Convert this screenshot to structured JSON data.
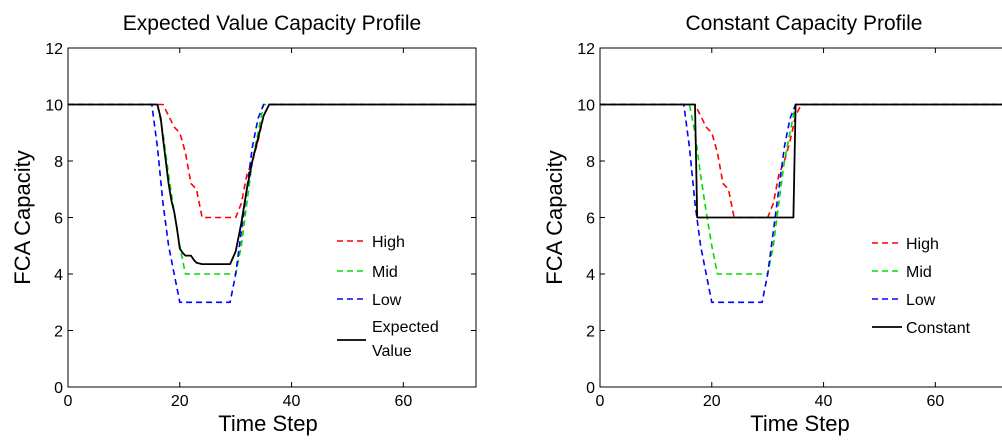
{
  "chart_data": [
    {
      "type": "line",
      "title": "Expected Value Capacity Profile",
      "xlabel": "Time Step",
      "ylabel": "FCA Capacity",
      "xlim": [
        0,
        73
      ],
      "ylim": [
        0,
        12
      ],
      "xticks": [
        0,
        20,
        40,
        60
      ],
      "yticks": [
        0,
        2,
        4,
        6,
        8,
        10,
        12
      ],
      "grid": false,
      "legend_position": "right",
      "series": [
        {
          "name": "High",
          "color": "#ff0000",
          "dash": "dashed",
          "points": [
            [
              0,
              10
            ],
            [
              17,
              10
            ],
            [
              18,
              9.6
            ],
            [
              19,
              9.2
            ],
            [
              20,
              9
            ],
            [
              21,
              8.3
            ],
            [
              22,
              7.2
            ],
            [
              23,
              7
            ],
            [
              24,
              6
            ],
            [
              30,
              6
            ],
            [
              31,
              6.5
            ],
            [
              32,
              7.5
            ],
            [
              33,
              8
            ],
            [
              34,
              8.7
            ],
            [
              35,
              9.6
            ],
            [
              36,
              10
            ],
            [
              73,
              10
            ]
          ]
        },
        {
          "name": "Mid",
          "color": "#00dd00",
          "dash": "dashed",
          "points": [
            [
              0,
              10
            ],
            [
              16,
              10
            ],
            [
              17,
              9
            ],
            [
              18,
              7.5
            ],
            [
              19,
              6.2
            ],
            [
              20,
              5
            ],
            [
              21,
              4
            ],
            [
              30,
              4
            ],
            [
              31,
              5
            ],
            [
              32,
              6.5
            ],
            [
              33,
              8
            ],
            [
              34,
              9
            ],
            [
              35,
              10
            ],
            [
              73,
              10
            ]
          ]
        },
        {
          "name": "Low",
          "color": "#0000ff",
          "dash": "dashed",
          "points": [
            [
              0,
              10
            ],
            [
              15,
              10
            ],
            [
              16,
              8.5
            ],
            [
              17,
              6.5
            ],
            [
              18,
              5
            ],
            [
              19,
              4
            ],
            [
              20,
              3
            ],
            [
              29,
              3
            ],
            [
              30,
              4
            ],
            [
              31,
              5.5
            ],
            [
              32,
              7
            ],
            [
              33,
              8.5
            ],
            [
              34,
              9.5
            ],
            [
              35,
              10
            ],
            [
              73,
              10
            ]
          ]
        },
        {
          "name": "Expected Value",
          "color": "#000000",
          "dash": "solid",
          "points": [
            [
              0,
              10
            ],
            [
              16,
              10
            ],
            [
              16.6,
              9.5
            ],
            [
              17,
              8.8
            ],
            [
              17.5,
              8
            ],
            [
              18,
              7.2
            ],
            [
              18.5,
              6.6
            ],
            [
              19,
              6.2
            ],
            [
              19.5,
              5.6
            ],
            [
              20,
              4.9
            ],
            [
              20.5,
              4.75
            ],
            [
              21,
              4.65
            ],
            [
              22,
              4.65
            ],
            [
              22.5,
              4.5
            ],
            [
              23,
              4.4
            ],
            [
              24,
              4.35
            ],
            [
              29,
              4.35
            ],
            [
              30,
              4.8
            ],
            [
              31,
              5.8
            ],
            [
              32,
              7
            ],
            [
              33,
              8
            ],
            [
              34,
              8.8
            ],
            [
              35,
              9.6
            ],
            [
              36,
              10
            ],
            [
              73,
              10
            ]
          ]
        }
      ]
    },
    {
      "type": "line",
      "title": "Constant Capacity Profile",
      "xlabel": "Time Step",
      "ylabel": "FCA Capacity",
      "xlim": [
        0,
        73
      ],
      "ylim": [
        0,
        12
      ],
      "xticks": [
        0,
        20,
        40,
        60
      ],
      "yticks": [
        0,
        2,
        4,
        6,
        8,
        10,
        12
      ],
      "grid": false,
      "legend_position": "bottom-right",
      "series": [
        {
          "name": "High",
          "color": "#ff0000",
          "dash": "dashed",
          "points": [
            [
              0,
              10
            ],
            [
              17,
              10
            ],
            [
              18,
              9.6
            ],
            [
              19,
              9.2
            ],
            [
              20,
              9
            ],
            [
              21,
              8.3
            ],
            [
              22,
              7.2
            ],
            [
              23,
              7
            ],
            [
              24,
              6
            ],
            [
              30,
              6
            ],
            [
              31,
              6.5
            ],
            [
              32,
              7.5
            ],
            [
              33,
              8
            ],
            [
              34,
              8.7
            ],
            [
              35,
              9.6
            ],
            [
              36,
              10
            ],
            [
              73,
              10
            ]
          ]
        },
        {
          "name": "Mid",
          "color": "#00dd00",
          "dash": "dashed",
          "points": [
            [
              0,
              10
            ],
            [
              16,
              10
            ],
            [
              17,
              9
            ],
            [
              18,
              7.5
            ],
            [
              19,
              6.2
            ],
            [
              20,
              5
            ],
            [
              21,
              4
            ],
            [
              30,
              4
            ],
            [
              31,
              5
            ],
            [
              32,
              6.5
            ],
            [
              33,
              8
            ],
            [
              34,
              9
            ],
            [
              35,
              10
            ],
            [
              73,
              10
            ]
          ]
        },
        {
          "name": "Low",
          "color": "#0000ff",
          "dash": "dashed",
          "points": [
            [
              0,
              10
            ],
            [
              15,
              10
            ],
            [
              16,
              8.5
            ],
            [
              17,
              6.5
            ],
            [
              18,
              5
            ],
            [
              19,
              4
            ],
            [
              20,
              3
            ],
            [
              29,
              3
            ],
            [
              30,
              4
            ],
            [
              31,
              5.5
            ],
            [
              32,
              7
            ],
            [
              33,
              8.5
            ],
            [
              34,
              9.5
            ],
            [
              35,
              10
            ],
            [
              73,
              10
            ]
          ]
        },
        {
          "name": "Constant",
          "color": "#000000",
          "dash": "solid",
          "points": [
            [
              0,
              10
            ],
            [
              17,
              10
            ],
            [
              17.4,
              6
            ],
            [
              34.6,
              6
            ],
            [
              35,
              10
            ],
            [
              73,
              10
            ]
          ]
        }
      ]
    }
  ]
}
